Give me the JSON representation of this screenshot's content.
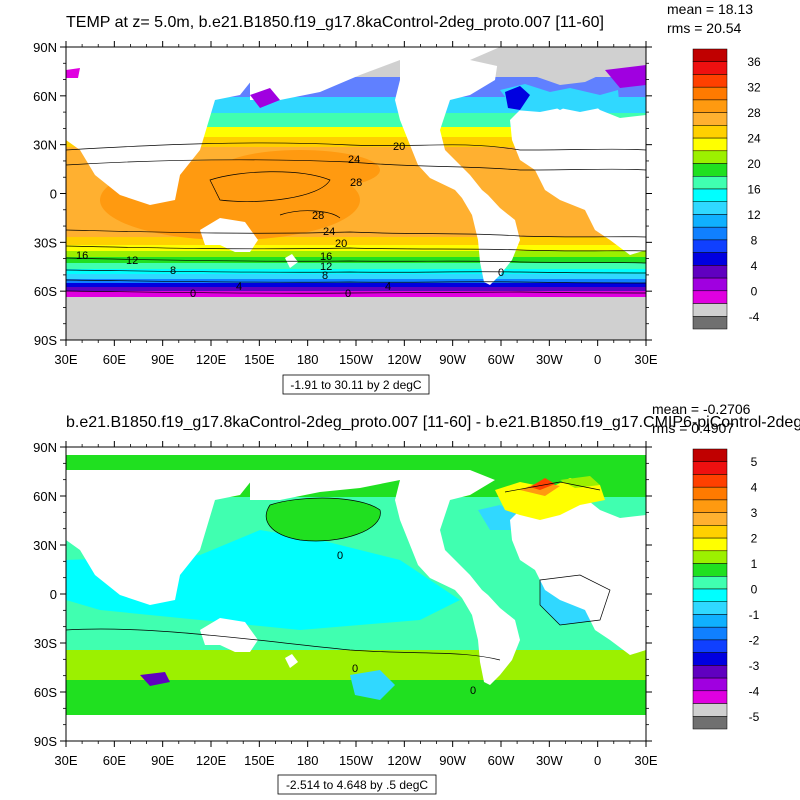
{
  "panels": [
    {
      "title": "TEMP at z=   5.0m, b.e21.B1850.f19_g17.8kaControl-2deg_proto.007 [11-60]",
      "mean_text": "mean = 18.13",
      "rms_text": "rms = 20.54",
      "info_text": "-1.91 to 30.11 by 2 degC",
      "colorbar": {
        "labels": [
          "36",
          "32",
          "28",
          "24",
          "20",
          "16",
          "12",
          "8",
          "4",
          "0",
          "-4"
        ],
        "colors": [
          "#c00000",
          "#ee1010",
          "#ff4000",
          "#ff7a00",
          "#ff9a10",
          "#ffb030",
          "#ffd000",
          "#ffff00",
          "#9cf000",
          "#20e020",
          "#40ffb0",
          "#00ffff",
          "#30d8ff",
          "#10b0ff",
          "#1080ff",
          "#1040ff",
          "#0000e0",
          "#6000c0",
          "#a000e0",
          "#e000e0",
          "#d0d0d0",
          "#707070"
        ]
      },
      "contour_labels": [
        "20",
        "24",
        "28",
        "28",
        "24",
        "20",
        "16",
        "12",
        "8",
        "4",
        "0",
        "0",
        "16",
        "12",
        "8",
        "4",
        "0"
      ]
    },
    {
      "title": "b.e21.B1850.f19_g17.8kaControl-2deg_proto.007 [11-60] - b.e21.B1850.f19_g17.CMIP6-piControl-2deg",
      "mean_text": "mean = -0.2706",
      "rms_text": "rms = 0.4907",
      "info_text": "-2.514 to 4.648 by .5 degC",
      "colorbar": {
        "labels": [
          "5",
          "4",
          "3",
          "2",
          "1",
          "0",
          "-1",
          "-2",
          "-3",
          "-4",
          "-5"
        ],
        "colors": [
          "#c00000",
          "#ee1010",
          "#ff4000",
          "#ff7a00",
          "#ff9a10",
          "#ffb030",
          "#ffd000",
          "#ffff00",
          "#9cf000",
          "#20e020",
          "#40ffb0",
          "#00ffff",
          "#30d8ff",
          "#10b0ff",
          "#1080ff",
          "#1040ff",
          "#0000e0",
          "#6000c0",
          "#a000e0",
          "#e000e0",
          "#d0d0d0",
          "#707070"
        ]
      },
      "contour_labels": [
        "0",
        "0",
        "0"
      ]
    }
  ],
  "axes": {
    "lat_labels": [
      "90N",
      "60N",
      "30N",
      "0",
      "30S",
      "60S",
      "90S"
    ],
    "lon_labels": [
      "30E",
      "60E",
      "90E",
      "120E",
      "150E",
      "180",
      "150W",
      "120W",
      "90W",
      "60W",
      "30W",
      "0",
      "30E"
    ]
  }
}
